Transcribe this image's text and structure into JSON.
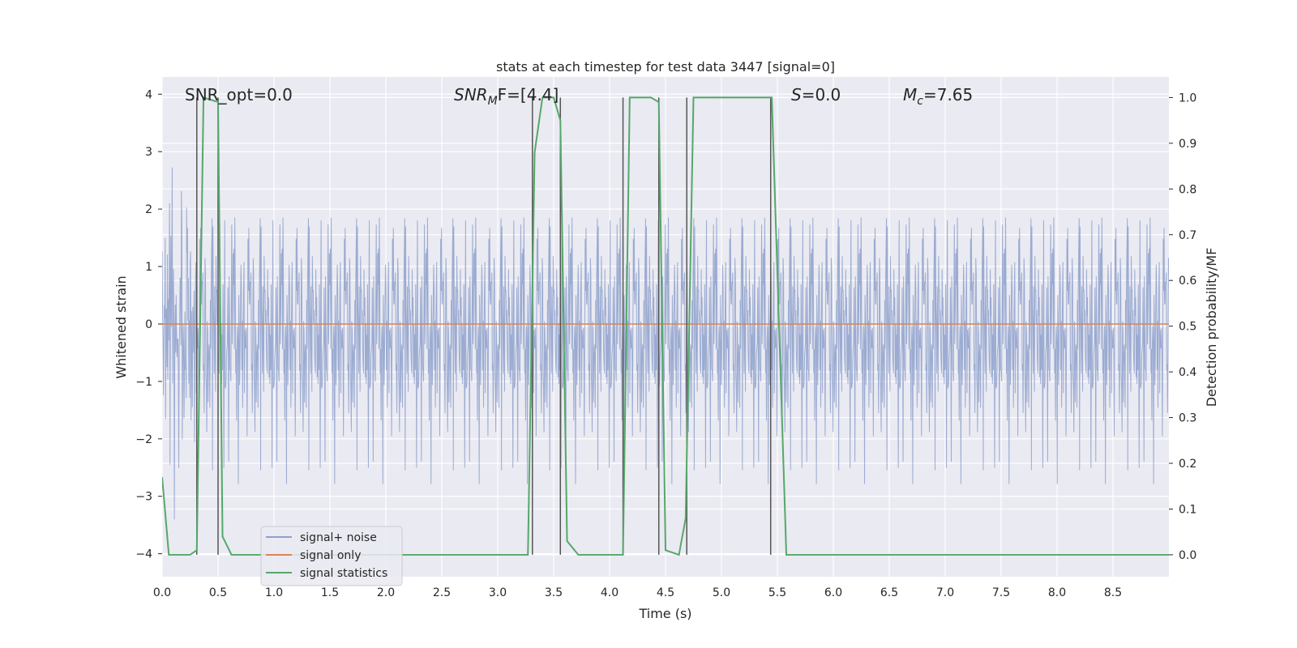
{
  "chart_data": {
    "type": "line",
    "title": "stats at each timestep for test data 3447 [signal=0]",
    "xlabel": "Time (s)",
    "ylabel": "Whitened strain",
    "ylabel_right": "Detection probability/MF",
    "xlim": [
      0.0,
      9.0
    ],
    "ylim": [
      -4.4,
      4.3
    ],
    "ylim_right": [
      -0.048,
      1.045
    ],
    "xticks": [
      "0.0",
      "0.5",
      "1.0",
      "1.5",
      "2.0",
      "2.5",
      "3.0",
      "3.5",
      "4.0",
      "4.5",
      "5.0",
      "5.5",
      "6.0",
      "6.5",
      "7.0",
      "7.5",
      "8.0",
      "8.5"
    ],
    "yticks": [
      "4",
      "3",
      "2",
      "1",
      "0",
      "−1",
      "−2",
      "−3",
      "−4"
    ],
    "yticks_right": [
      "1.0",
      "0.9",
      "0.8",
      "0.7",
      "0.6",
      "0.5",
      "0.4",
      "0.3",
      "0.2",
      "0.1",
      "0.0"
    ],
    "grid": true,
    "legend_placement": "lower-left",
    "annotations": {
      "snr_opt": "SNR_opt=0.0",
      "snr_mf_symbol": "SNR",
      "snr_mf_sub": "M",
      "snr_mf_rest": "F=[4.4]",
      "s_symbol": "S",
      "s_rest": "=0.0",
      "mc_symbol": "M",
      "mc_sub": "c",
      "mc_rest": "=7.65"
    },
    "series": [
      {
        "name": "signal+ noise",
        "color": "#8da0cb",
        "style": "noise",
        "amplitude_std": 1.1,
        "x_range": [
          0.0,
          9.0
        ]
      },
      {
        "name": "signal only",
        "color": "#dd8452",
        "values": [
          [
            0.0,
            0.0
          ],
          [
            9.0,
            0.0
          ]
        ]
      },
      {
        "name": "signal statistics",
        "color": "#55a868",
        "axis": "right",
        "values": [
          [
            0.0,
            0.17
          ],
          [
            0.06,
            0.0
          ],
          [
            0.25,
            0.0
          ],
          [
            0.31,
            0.01
          ],
          [
            0.37,
            1.0
          ],
          [
            0.5,
            0.99
          ],
          [
            0.54,
            0.04
          ],
          [
            0.62,
            0.0
          ],
          [
            3.27,
            0.0
          ],
          [
            3.33,
            0.88
          ],
          [
            3.4,
            1.0
          ],
          [
            3.5,
            1.0
          ],
          [
            3.56,
            0.95
          ],
          [
            3.62,
            0.03
          ],
          [
            3.72,
            0.0
          ],
          [
            4.12,
            0.0
          ],
          [
            4.18,
            1.0
          ],
          [
            4.37,
            1.0
          ],
          [
            4.44,
            0.99
          ],
          [
            4.5,
            0.01
          ],
          [
            4.62,
            0.0
          ],
          [
            4.68,
            0.08
          ],
          [
            4.75,
            1.0
          ],
          [
            5.45,
            1.0
          ],
          [
            5.58,
            0.0
          ],
          [
            9.0,
            0.0
          ]
        ]
      }
    ],
    "vertical_lines": [
      0.31,
      0.5,
      3.31,
      3.56,
      4.12,
      4.44,
      4.69,
      5.44
    ]
  },
  "colors": {
    "background": "#eaeaf2",
    "grid": "#ffffff",
    "vline": "#555555"
  }
}
